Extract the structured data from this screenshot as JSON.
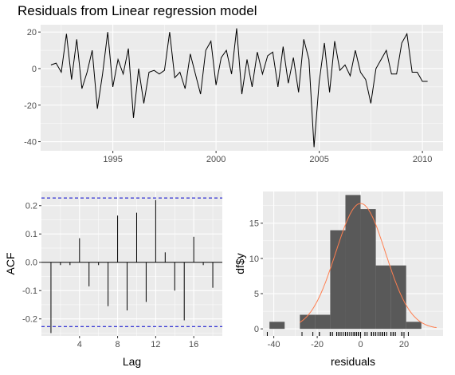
{
  "title": "Residuals from Linear regression model",
  "colors": {
    "panel": "#ebebeb",
    "grid": "#ffffff",
    "line": "#000000",
    "bar": "#595959",
    "ci": "#0000cc",
    "density": "#ff7f50"
  },
  "chart_data": [
    {
      "type": "line",
      "title": "Residuals from Linear regression model",
      "xlabel": "",
      "ylabel": "",
      "xlim": [
        1991.5,
        2011.0
      ],
      "ylim": [
        -45,
        24
      ],
      "xticks": [
        "1995",
        "2000",
        "2005",
        "2010"
      ],
      "yticks": [
        "20",
        "0",
        "-20",
        "-40"
      ],
      "grid": true,
      "x": [
        1992.0,
        1992.25,
        1992.5,
        1992.75,
        1993.0,
        1993.25,
        1993.5,
        1993.75,
        1994.0,
        1994.25,
        1994.5,
        1994.75,
        1995.0,
        1995.25,
        1995.5,
        1995.75,
        1996.0,
        1996.25,
        1996.5,
        1996.75,
        1997.0,
        1997.25,
        1997.5,
        1997.75,
        1998.0,
        1998.25,
        1998.5,
        1998.75,
        1999.0,
        1999.25,
        1999.5,
        1999.75,
        2000.0,
        2000.25,
        2000.5,
        2000.75,
        2001.0,
        2001.25,
        2001.5,
        2001.75,
        2002.0,
        2002.25,
        2002.5,
        2002.75,
        2003.0,
        2003.25,
        2003.5,
        2003.75,
        2004.0,
        2004.25,
        2004.5,
        2004.75,
        2005.0,
        2005.25,
        2005.5,
        2005.75,
        2006.0,
        2006.25,
        2006.5,
        2006.75,
        2007.0,
        2007.25,
        2007.5,
        2007.75,
        2008.0,
        2008.25,
        2008.5,
        2008.75,
        2009.0,
        2009.25,
        2009.5,
        2009.75,
        2010.0,
        2010.25
      ],
      "y": [
        2,
        3,
        -2,
        19,
        -6,
        16,
        -11,
        -2,
        10,
        -22,
        -3,
        20,
        -10,
        5,
        -3,
        11,
        -27,
        0,
        -19,
        -2,
        -1,
        -3,
        -1,
        20,
        -5,
        -2,
        -11,
        8,
        -3,
        -14,
        10,
        15,
        -9,
        6,
        10,
        -3,
        22,
        -14,
        5,
        -10,
        9,
        -3,
        7,
        9,
        -10,
        12,
        -8,
        6,
        -13,
        16,
        5,
        -43,
        -7,
        14,
        -13,
        15,
        -1,
        2,
        -4,
        10,
        -2,
        -6,
        -19,
        0,
        5,
        10,
        -3,
        -3,
        14,
        19,
        -2,
        -2,
        -7,
        -7
      ]
    },
    {
      "type": "bar",
      "title": "",
      "xlabel": "Lag",
      "ylabel": "ACF",
      "xlim": [
        0,
        19
      ],
      "ylim": [
        -0.26,
        0.25
      ],
      "xticks": [
        "4",
        "8",
        "12",
        "16"
      ],
      "yticks": [
        "0.2",
        "0.1",
        "0.0",
        "-0.1",
        "-0.2"
      ],
      "ci": [
        -0.227,
        0.227
      ],
      "lags": [
        1,
        2,
        3,
        4,
        5,
        6,
        7,
        8,
        9,
        10,
        11,
        12,
        13,
        14,
        15,
        16,
        17,
        18
      ],
      "values": [
        -0.25,
        -0.01,
        -0.01,
        0.085,
        -0.085,
        -0.01,
        -0.155,
        0.165,
        -0.17,
        0.175,
        -0.14,
        0.22,
        0.035,
        -0.1,
        -0.205,
        0.09,
        -0.01,
        -0.09
      ]
    },
    {
      "type": "histogram",
      "title": "",
      "xlabel": "residuals",
      "ylabel": "df$y",
      "xlim": [
        -45,
        38
      ],
      "ylim": [
        -1,
        19.5
      ],
      "xticks": [
        "-40",
        "-20",
        "0",
        "20"
      ],
      "yticks": [
        "15",
        "10",
        "5",
        "0"
      ],
      "bins": [
        {
          "left": -42,
          "right": -35,
          "count": 1
        },
        {
          "left": -28,
          "right": -21,
          "count": 2
        },
        {
          "left": -21,
          "right": -14,
          "count": 2
        },
        {
          "left": -14,
          "right": -7,
          "count": 14
        },
        {
          "left": -7,
          "right": 0,
          "count": 19
        },
        {
          "left": 0,
          "right": 7,
          "count": 17
        },
        {
          "left": 7,
          "right": 14,
          "count": 9
        },
        {
          "left": 14,
          "right": 21,
          "count": 9
        },
        {
          "left": 21,
          "right": 28,
          "count": 1
        }
      ],
      "density": {
        "mean": 0,
        "sd": 11.5,
        "peak": 17.8,
        "from": -28,
        "to": 35
      }
    }
  ]
}
